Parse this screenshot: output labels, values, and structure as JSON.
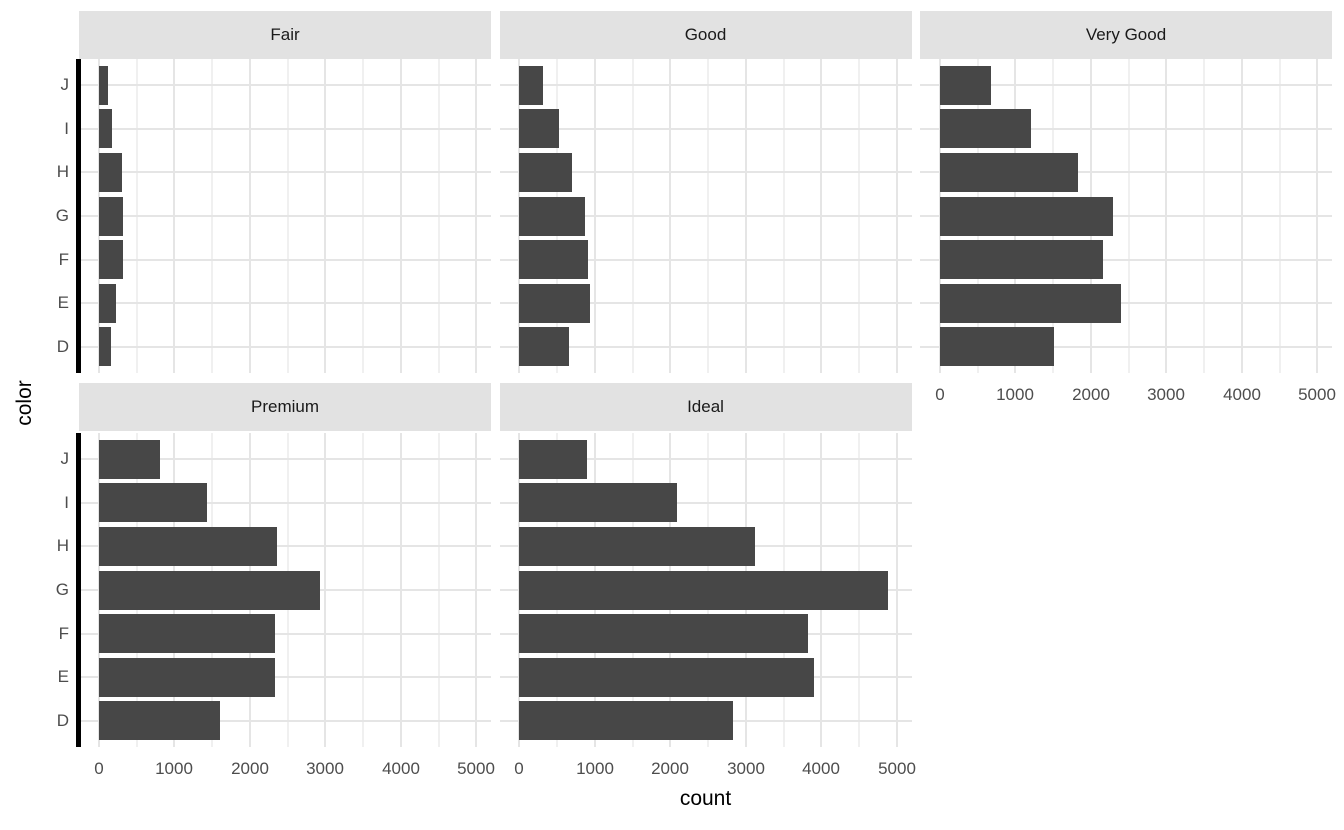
{
  "chart_data": {
    "type": "bar",
    "orientation": "horizontal",
    "title": "",
    "xlabel": "count",
    "ylabel": "color",
    "facet_variable": "cut",
    "ncols": 3,
    "legend": "none",
    "grid": true,
    "categories_top_to_bottom": [
      "J",
      "I",
      "H",
      "G",
      "F",
      "E",
      "D"
    ],
    "x_ticks": [
      0,
      1000,
      2000,
      3000,
      4000,
      5000
    ],
    "x_minor_ticks": [
      500,
      1500,
      2500,
      3500,
      4500
    ],
    "x_domain": [
      -265,
      5195
    ],
    "xlim": [
      0,
      5000
    ],
    "facets": [
      {
        "label": "Fair",
        "values": [
          119,
          175,
          303,
          314,
          312,
          224,
          163
        ]
      },
      {
        "label": "Good",
        "values": [
          307,
          522,
          702,
          871,
          909,
          933,
          662
        ]
      },
      {
        "label": "Very Good",
        "values": [
          678,
          1204,
          1824,
          2299,
          2164,
          2400,
          1513
        ]
      },
      {
        "label": "Premium",
        "values": [
          808,
          1428,
          2360,
          2924,
          2331,
          2337,
          1603
        ]
      },
      {
        "label": "Ideal",
        "values": [
          896,
          2093,
          3115,
          4884,
          3826,
          3903,
          2834
        ]
      }
    ]
  },
  "style": {
    "bar_fill": "#474747",
    "strip_bg": "#E2E2E2",
    "strip_text": "#1A1A1A",
    "grid_major": "#E5E5E5",
    "grid_minor": "#F0F0F0",
    "axis_line": "#000000",
    "tick_text": "#4D4D4D",
    "title_text": "#000000",
    "panel_bg": "#FFFFFF"
  }
}
